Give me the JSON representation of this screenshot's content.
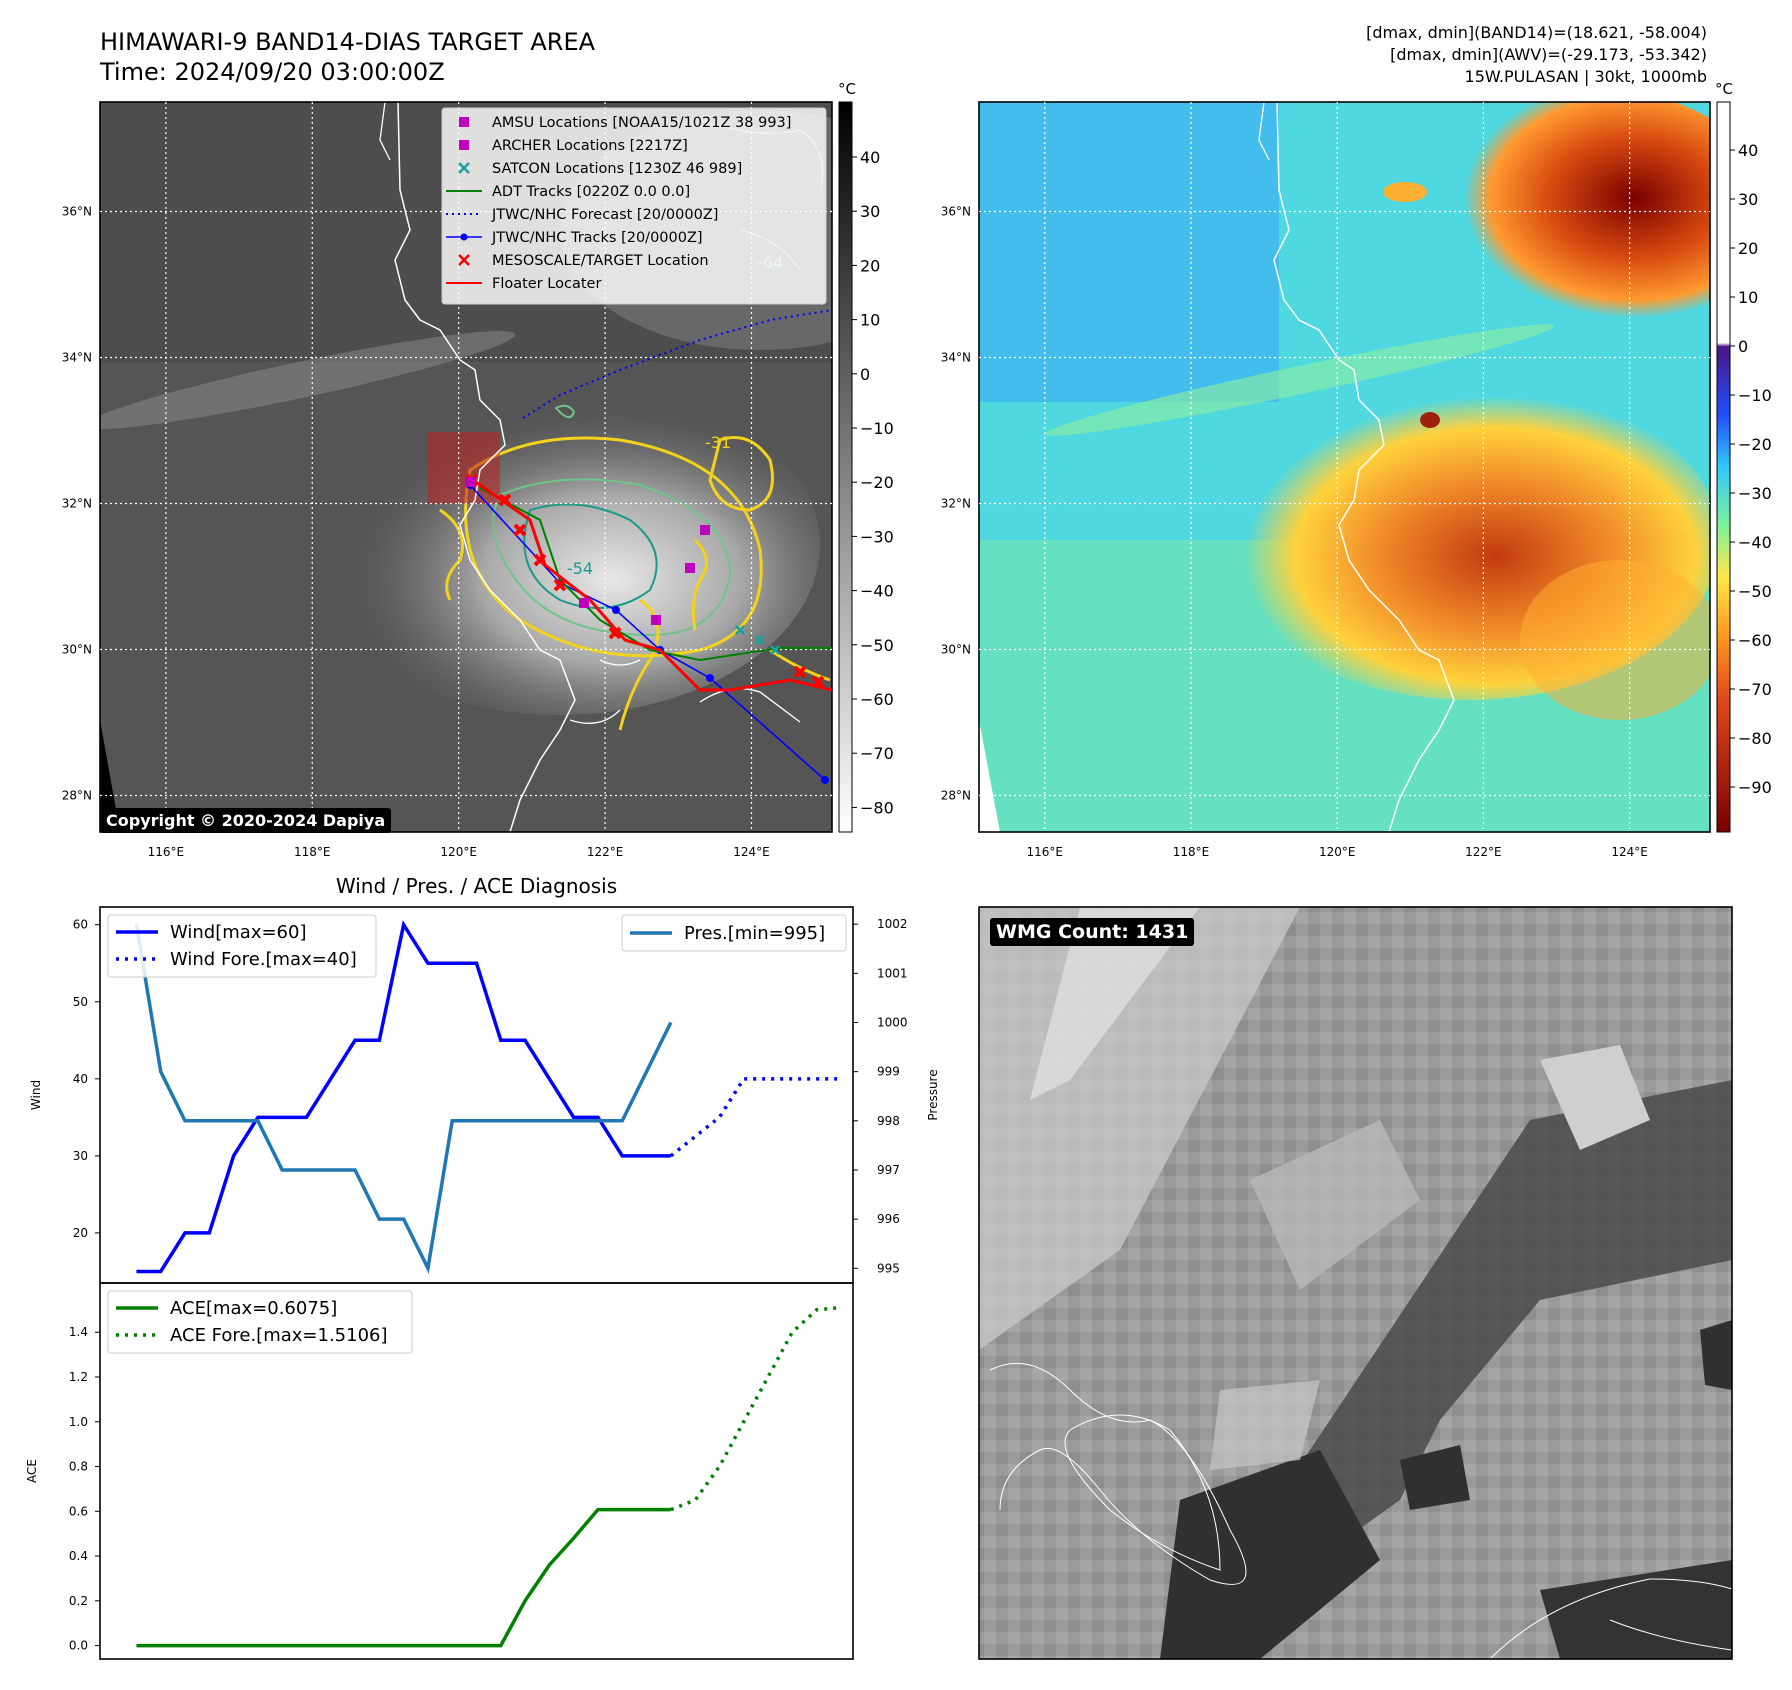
{
  "header": {
    "title": "HIMAWARI-9 BAND14-DIAS TARGET AREA",
    "time": "Time: 2024/09/20 03:00:00Z",
    "stats_band14": "[dmax, dmin](BAND14)=(18.621, -58.004)",
    "stats_awv": "[dmax, dmin](AWV)=(-29.173, -53.342)",
    "storm": "15W.PULASAN | 30kt, 1000mb"
  },
  "copyright": "Copyright © 2020-2024 Dapiya",
  "wmg_count": "WMG Count: 1431",
  "colors": {
    "wind": "#0000ff",
    "pressure": "#1f77b4",
    "ace": "#008000",
    "floater": "#ff0000",
    "adt": "#008000",
    "amsu": "#bf00bf",
    "satcon": "#17a2a2"
  },
  "maps": {
    "lon_ticks": [
      "116°E",
      "118°E",
      "120°E",
      "122°E",
      "124°E"
    ],
    "lat_ticks": [
      "36°N",
      "34°N",
      "32°N",
      "30°N",
      "28°N"
    ],
    "contour_labels": [
      "-31",
      "-54",
      "-64"
    ]
  },
  "colorbar_left": {
    "unit": "°C",
    "ticks": [
      "40",
      "30",
      "20",
      "10",
      "0",
      "−10",
      "−20",
      "−30",
      "−40",
      "−50",
      "−60",
      "−70",
      "−80"
    ]
  },
  "colorbar_right": {
    "unit": "°C",
    "ticks": [
      "40",
      "30",
      "20",
      "10",
      "0",
      "−10",
      "−20",
      "−30",
      "−40",
      "−50",
      "−60",
      "−70",
      "−80",
      "−90"
    ]
  },
  "legend": {
    "items": [
      {
        "label": "AMSU Locations [NOAA15/1021Z 38 993]",
        "marker": "square",
        "color": "#bf00bf"
      },
      {
        "label": "ARCHER Locations [2217Z]",
        "marker": "square",
        "color": "#bf00bf"
      },
      {
        "label": "SATCON Locations [1230Z 46 989]",
        "marker": "x",
        "color": "#17a2a2"
      },
      {
        "label": "ADT Tracks [0220Z 0.0 0.0]",
        "marker": "line",
        "color": "#008000"
      },
      {
        "label": "JTWC/NHC Forecast [20/0000Z]",
        "marker": "dotted",
        "color": "#0000ff"
      },
      {
        "label": "JTWC/NHC Tracks [20/0000Z]",
        "marker": "line-dot",
        "color": "#0000ff"
      },
      {
        "label": "MESOSCALE/TARGET Location",
        "marker": "x",
        "color": "#ff0000"
      },
      {
        "label": "Floater Locater",
        "marker": "line",
        "color": "#ff0000"
      }
    ]
  },
  "chart_data": [
    {
      "type": "line",
      "title": "Wind / Pres. / ACE Diagnosis",
      "ylabel": "Wind",
      "y2label": "Pressure",
      "ylim": [
        13.5,
        62.3
      ],
      "y2lim": [
        994.7,
        1002.35
      ],
      "xlim": [
        -1.5,
        29.5
      ],
      "yticks": [
        20,
        30,
        40,
        50,
        60
      ],
      "y2ticks": [
        995,
        996,
        997,
        998,
        999,
        1000,
        1001,
        1002
      ],
      "series": [
        {
          "name": "Wind[max=60]",
          "axis": "left",
          "style": "solid",
          "x": [
            0,
            1,
            2,
            3,
            4,
            5,
            6,
            7,
            8,
            9,
            10,
            11,
            12,
            13,
            14,
            15,
            16,
            17,
            18,
            19,
            20,
            21,
            22
          ],
          "y": [
            15,
            15,
            20,
            20,
            30,
            35,
            35,
            35,
            40,
            45,
            45,
            60,
            55,
            55,
            55,
            45,
            45,
            40,
            35,
            35,
            30,
            30,
            30
          ]
        },
        {
          "name": "Wind Fore.[max=40]",
          "axis": "left",
          "style": "dotted",
          "x": [
            22,
            23,
            24,
            25,
            26,
            27,
            28,
            29
          ],
          "y": [
            30,
            32.5,
            35,
            40,
            40,
            40,
            40,
            40
          ]
        },
        {
          "name": "Pres.[min=995]",
          "axis": "right",
          "style": "solid",
          "x": [
            0,
            1,
            2,
            3,
            4,
            5,
            6,
            7,
            8,
            9,
            10,
            11,
            12,
            13,
            14,
            15,
            16,
            17,
            18,
            19,
            20,
            21,
            22
          ],
          "y": [
            1002,
            999,
            998,
            998,
            998,
            998,
            997,
            997,
            997,
            997,
            996,
            996,
            995,
            998,
            998,
            998,
            998,
            998,
            998,
            998,
            998,
            999,
            1000
          ]
        }
      ]
    },
    {
      "type": "line",
      "ylabel": "ACE",
      "ylim": [
        -0.06,
        1.62
      ],
      "xlim": [
        -1.5,
        29.5
      ],
      "yticks": [
        0.0,
        0.2,
        0.4,
        0.6,
        0.8,
        1.0,
        1.2,
        1.4
      ],
      "ytick_labels": [
        "0.0",
        "0.2",
        "0.4",
        "0.6",
        "0.8",
        "1.0",
        "1.2",
        "1.4"
      ],
      "series": [
        {
          "name": "ACE[max=0.6075]",
          "style": "solid",
          "x": [
            0,
            1,
            2,
            3,
            4,
            5,
            6,
            7,
            8,
            9,
            10,
            11,
            12,
            13,
            14,
            15,
            16,
            17,
            18,
            19,
            20,
            21,
            22
          ],
          "y": [
            0,
            0,
            0,
            0,
            0,
            0,
            0,
            0,
            0,
            0,
            0,
            0,
            0,
            0,
            0,
            0,
            0.2,
            0.36,
            0.48,
            0.6075,
            0.6075,
            0.6075,
            0.6075
          ]
        },
        {
          "name": "ACE Fore.[max=1.5106]",
          "style": "dotted",
          "x": [
            22,
            23,
            24,
            25,
            26,
            27,
            28,
            29
          ],
          "y": [
            0.6075,
            0.65,
            0.8,
            1.0,
            1.2,
            1.4,
            1.5,
            1.5106
          ]
        }
      ]
    }
  ]
}
